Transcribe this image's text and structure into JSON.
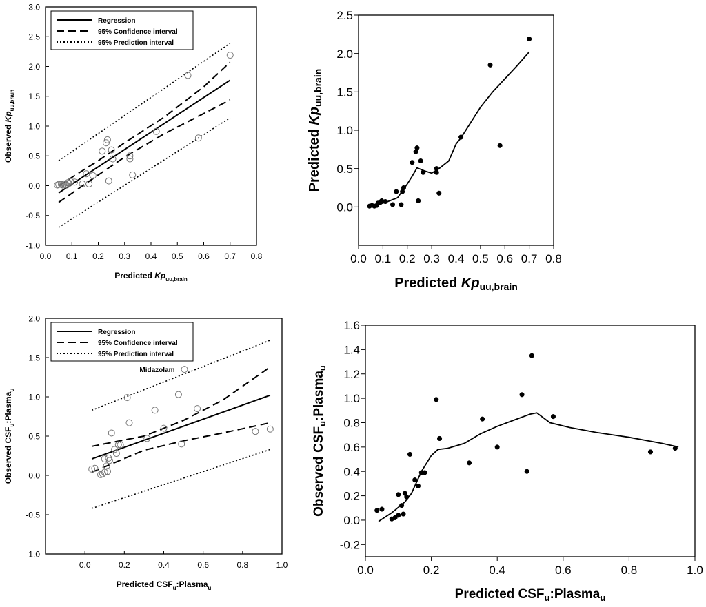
{
  "chart_data": [
    {
      "id": "p1",
      "type": "scatter",
      "title": "",
      "xlabel_main": "Predicted ",
      "xlabel_italic": "Kp",
      "xlabel_sub": "uu,brain",
      "ylabel_main": "Observed ",
      "ylabel_italic": "Kp",
      "ylabel_sub": "uu,brain",
      "xlim": [
        0,
        0.8
      ],
      "ylim": [
        -1.0,
        3.0
      ],
      "xticks": [
        "0.0",
        "0.1",
        "0.2",
        "0.3",
        "0.4",
        "0.5",
        "0.6",
        "0.7",
        "0.8"
      ],
      "yticks": [
        "-1.0",
        "-0.5",
        "0.0",
        "0.5",
        "1.0",
        "1.5",
        "2.0",
        "2.5",
        "3.0"
      ],
      "legend": [
        "Regression",
        "95% Confidence interval",
        "95% Prediction interval"
      ],
      "legend_position": "top-left",
      "points": [
        [
          0.045,
          0.01
        ],
        [
          0.05,
          0.02
        ],
        [
          0.06,
          0.02
        ],
        [
          0.065,
          0.01
        ],
        [
          0.07,
          0.03
        ],
        [
          0.075,
          0.02
        ],
        [
          0.08,
          0.01
        ],
        [
          0.085,
          0.05
        ],
        [
          0.09,
          0.04
        ],
        [
          0.095,
          0.07
        ],
        [
          0.11,
          0.06
        ],
        [
          0.14,
          0.03
        ],
        [
          0.155,
          0.2
        ],
        [
          0.165,
          0.03
        ],
        [
          0.18,
          0.17
        ],
        [
          0.215,
          0.58
        ],
        [
          0.23,
          0.72
        ],
        [
          0.235,
          0.77
        ],
        [
          0.24,
          0.08
        ],
        [
          0.25,
          0.6
        ],
        [
          0.255,
          0.45
        ],
        [
          0.32,
          0.45
        ],
        [
          0.32,
          0.5
        ],
        [
          0.33,
          0.18
        ],
        [
          0.42,
          0.91
        ],
        [
          0.54,
          1.85
        ],
        [
          0.58,
          0.8
        ],
        [
          0.7,
          2.19
        ]
      ],
      "regression": [
        [
          0.05,
          -0.12
        ],
        [
          0.7,
          1.77
        ]
      ],
      "ci_upper": [
        [
          0.05,
          0.0
        ],
        [
          0.2,
          0.42
        ],
        [
          0.3,
          0.72
        ],
        [
          0.45,
          1.15
        ],
        [
          0.6,
          1.66
        ],
        [
          0.7,
          2.07
        ]
      ],
      "ci_lower": [
        [
          0.05,
          -0.28
        ],
        [
          0.2,
          0.18
        ],
        [
          0.3,
          0.48
        ],
        [
          0.45,
          0.87
        ],
        [
          0.6,
          1.21
        ],
        [
          0.7,
          1.44
        ]
      ],
      "pi_upper": [
        [
          0.05,
          0.42
        ],
        [
          0.7,
          2.39
        ]
      ],
      "pi_lower": [
        [
          0.05,
          -0.7
        ],
        [
          0.7,
          1.14
        ]
      ]
    },
    {
      "id": "p2",
      "type": "scatter",
      "title": "",
      "xlabel_main": "Predicted ",
      "xlabel_italic": "Kp",
      "xlabel_sub": "uu,brain",
      "ylabel_main": "Predicted ",
      "ylabel_italic": "Kp",
      "ylabel_sub": "uu,brain",
      "xlim": [
        0,
        0.8
      ],
      "ylim": [
        -0.5,
        2.5
      ],
      "xticks": [
        "0.0",
        "0.1",
        "0.2",
        "0.3",
        "0.4",
        "0.5",
        "0.6",
        "0.7",
        "0.8"
      ],
      "yticks": [
        "0.0",
        "0.5",
        "1.0",
        "1.5",
        "2.0",
        "2.5"
      ],
      "points": [
        [
          0.045,
          0.01
        ],
        [
          0.055,
          0.02
        ],
        [
          0.065,
          0.01
        ],
        [
          0.075,
          0.02
        ],
        [
          0.08,
          0.05
        ],
        [
          0.09,
          0.06
        ],
        [
          0.095,
          0.08
        ],
        [
          0.11,
          0.07
        ],
        [
          0.14,
          0.03
        ],
        [
          0.155,
          0.2
        ],
        [
          0.175,
          0.03
        ],
        [
          0.18,
          0.2
        ],
        [
          0.185,
          0.25
        ],
        [
          0.22,
          0.58
        ],
        [
          0.235,
          0.72
        ],
        [
          0.24,
          0.77
        ],
        [
          0.245,
          0.08
        ],
        [
          0.255,
          0.6
        ],
        [
          0.265,
          0.45
        ],
        [
          0.32,
          0.45
        ],
        [
          0.32,
          0.5
        ],
        [
          0.33,
          0.18
        ],
        [
          0.42,
          0.91
        ],
        [
          0.54,
          1.85
        ],
        [
          0.58,
          0.8
        ],
        [
          0.7,
          2.19
        ]
      ],
      "smoother": [
        [
          0.045,
          0.0
        ],
        [
          0.08,
          0.03
        ],
        [
          0.12,
          0.07
        ],
        [
          0.16,
          0.12
        ],
        [
          0.2,
          0.3
        ],
        [
          0.22,
          0.4
        ],
        [
          0.24,
          0.51
        ],
        [
          0.27,
          0.47
        ],
        [
          0.3,
          0.44
        ],
        [
          0.33,
          0.5
        ],
        [
          0.37,
          0.6
        ],
        [
          0.4,
          0.82
        ],
        [
          0.42,
          0.9
        ],
        [
          0.46,
          1.1
        ],
        [
          0.5,
          1.3
        ],
        [
          0.55,
          1.5
        ],
        [
          0.6,
          1.67
        ],
        [
          0.65,
          1.84
        ],
        [
          0.7,
          2.02
        ]
      ]
    },
    {
      "id": "p3",
      "type": "scatter",
      "title": "",
      "xlabel_main": "Predicted CSF",
      "xlabel_sub": "u",
      "xlabel_main2": ":Plasma",
      "xlabel_sub2": "u",
      "ylabel_main": "Observed CSF",
      "ylabel_sub": "u",
      "ylabel_main2": ":Plasma",
      "ylabel_sub2": "u",
      "xlim": [
        -0.2,
        1.0
      ],
      "ylim": [
        -1.0,
        2.0
      ],
      "xticks": [
        "0.0",
        "0.2",
        "0.4",
        "0.6",
        "0.8",
        "1.0"
      ],
      "yticks": [
        "-1.0",
        "-0.5",
        "0.0",
        "0.5",
        "1.0",
        "1.5",
        "2.0"
      ],
      "legend": [
        "Regression",
        "95% Confidence interval",
        "95% Prediction interval"
      ],
      "legend_position": "top-left",
      "annotation": "Midazolam",
      "points": [
        [
          0.035,
          0.08
        ],
        [
          0.05,
          0.09
        ],
        [
          0.08,
          0.01
        ],
        [
          0.09,
          0.02
        ],
        [
          0.1,
          0.04
        ],
        [
          0.1,
          0.21
        ],
        [
          0.11,
          0.12
        ],
        [
          0.115,
          0.05
        ],
        [
          0.12,
          0.22
        ],
        [
          0.125,
          0.19
        ],
        [
          0.135,
          0.54
        ],
        [
          0.15,
          0.33
        ],
        [
          0.16,
          0.28
        ],
        [
          0.17,
          0.39
        ],
        [
          0.18,
          0.39
        ],
        [
          0.215,
          0.99
        ],
        [
          0.225,
          0.67
        ],
        [
          0.315,
          0.47
        ],
        [
          0.355,
          0.83
        ],
        [
          0.4,
          0.6
        ],
        [
          0.475,
          1.03
        ],
        [
          0.49,
          0.4
        ],
        [
          0.505,
          1.35
        ],
        [
          0.57,
          0.85
        ],
        [
          0.865,
          0.56
        ],
        [
          0.94,
          0.59
        ]
      ],
      "regression": [
        [
          0.035,
          0.21
        ],
        [
          0.94,
          1.02
        ]
      ],
      "ci_upper": [
        [
          0.035,
          0.37
        ],
        [
          0.3,
          0.5
        ],
        [
          0.5,
          0.7
        ],
        [
          0.7,
          0.96
        ],
        [
          0.94,
          1.38
        ]
      ],
      "ci_lower": [
        [
          0.035,
          0.04
        ],
        [
          0.3,
          0.32
        ],
        [
          0.5,
          0.44
        ],
        [
          0.7,
          0.54
        ],
        [
          0.94,
          0.67
        ]
      ],
      "pi_upper": [
        [
          0.035,
          0.83
        ],
        [
          0.94,
          1.72
        ]
      ],
      "pi_lower": [
        [
          0.035,
          -0.42
        ],
        [
          0.94,
          0.33
        ]
      ]
    },
    {
      "id": "p4",
      "type": "scatter",
      "title": "",
      "xlabel_main": "Predicted CSF",
      "xlabel_sub": "u",
      "xlabel_main2": ":Plasma",
      "xlabel_sub2": "u",
      "ylabel_main": "Observed CSF",
      "ylabel_sub": "u",
      "ylabel_main2": ":Plasma",
      "ylabel_sub2": "u",
      "xlim": [
        0,
        1.0
      ],
      "ylim": [
        -0.3,
        1.6
      ],
      "xticks": [
        "0.0",
        "0.2",
        "0.4",
        "0.6",
        "0.8",
        "1.0"
      ],
      "yticks": [
        "-0.2",
        "0.0",
        "0.2",
        "0.4",
        "0.6",
        "0.8",
        "1.0",
        "1.2",
        "1.4",
        "1.6"
      ],
      "points": [
        [
          0.035,
          0.08
        ],
        [
          0.05,
          0.09
        ],
        [
          0.08,
          0.01
        ],
        [
          0.09,
          0.02
        ],
        [
          0.1,
          0.04
        ],
        [
          0.1,
          0.21
        ],
        [
          0.11,
          0.12
        ],
        [
          0.115,
          0.05
        ],
        [
          0.12,
          0.22
        ],
        [
          0.125,
          0.19
        ],
        [
          0.135,
          0.54
        ],
        [
          0.15,
          0.33
        ],
        [
          0.16,
          0.28
        ],
        [
          0.17,
          0.39
        ],
        [
          0.18,
          0.39
        ],
        [
          0.215,
          0.99
        ],
        [
          0.225,
          0.67
        ],
        [
          0.315,
          0.47
        ],
        [
          0.355,
          0.83
        ],
        [
          0.4,
          0.6
        ],
        [
          0.475,
          1.03
        ],
        [
          0.49,
          0.4
        ],
        [
          0.505,
          1.35
        ],
        [
          0.57,
          0.85
        ],
        [
          0.865,
          0.56
        ],
        [
          0.94,
          0.59
        ]
      ],
      "smoother": [
        [
          0.04,
          -0.01
        ],
        [
          0.08,
          0.06
        ],
        [
          0.12,
          0.15
        ],
        [
          0.14,
          0.22
        ],
        [
          0.17,
          0.4
        ],
        [
          0.2,
          0.53
        ],
        [
          0.22,
          0.58
        ],
        [
          0.25,
          0.59
        ],
        [
          0.3,
          0.63
        ],
        [
          0.35,
          0.71
        ],
        [
          0.4,
          0.77
        ],
        [
          0.45,
          0.82
        ],
        [
          0.5,
          0.87
        ],
        [
          0.52,
          0.88
        ],
        [
          0.56,
          0.8
        ],
        [
          0.62,
          0.76
        ],
        [
          0.7,
          0.72
        ],
        [
          0.8,
          0.68
        ],
        [
          0.9,
          0.63
        ],
        [
          0.95,
          0.6
        ]
      ]
    }
  ]
}
